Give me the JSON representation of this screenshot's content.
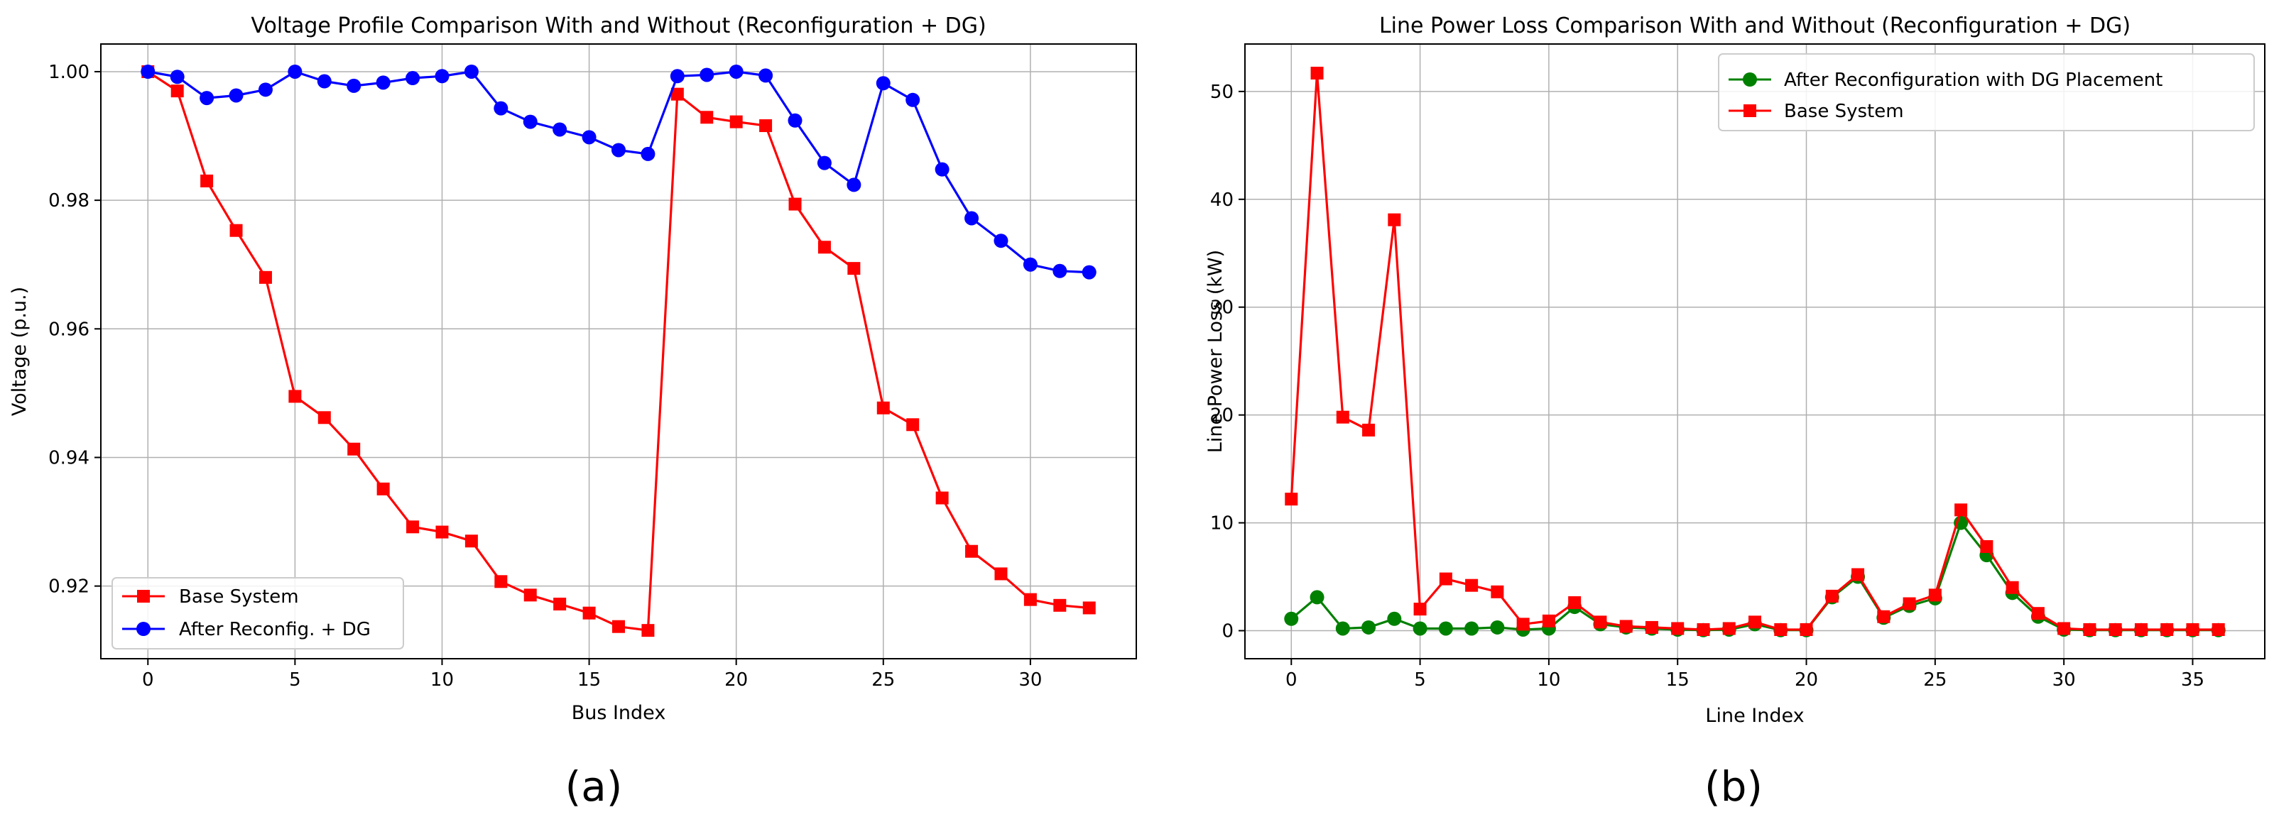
{
  "chart_data": [
    {
      "type": "line",
      "title": "Voltage Profile Comparison With and Without (Reconfiguration + DG)",
      "xlabel": "Bus Index",
      "ylabel": "Voltage (p.u.)",
      "xlim": [
        -1.6,
        33.6
      ],
      "ylim": [
        0.9087,
        1.0043
      ],
      "xticks": [
        0,
        5,
        10,
        15,
        20,
        25,
        30
      ],
      "yticks": [
        0.92,
        0.94,
        0.96,
        0.98,
        1.0
      ],
      "ytick_labels": [
        "0.92",
        "0.94",
        "0.96",
        "0.98",
        "1.00"
      ],
      "grid": true,
      "legend_position": "lower-left",
      "caption": "(a)",
      "series": [
        {
          "name": "Base System",
          "color": "#ff0000",
          "marker": "square",
          "x": [
            0,
            1,
            2,
            3,
            4,
            5,
            6,
            7,
            8,
            9,
            10,
            11,
            12,
            13,
            14,
            15,
            16,
            17,
            18,
            19,
            20,
            21,
            22,
            23,
            24,
            25,
            26,
            27,
            28,
            29,
            30,
            31,
            32
          ],
          "values": [
            1.0,
            0.997,
            0.983,
            0.9753,
            0.968,
            0.9495,
            0.9462,
            0.9413,
            0.9351,
            0.9292,
            0.9284,
            0.927,
            0.9207,
            0.9186,
            0.9172,
            0.9158,
            0.9137,
            0.9131,
            0.9965,
            0.9929,
            0.9922,
            0.9916,
            0.9794,
            0.9727,
            0.9694,
            0.9477,
            0.9451,
            0.9337,
            0.9254,
            0.9219,
            0.9179,
            0.917,
            0.9166
          ]
        },
        {
          "name": "After Reconfig. + DG",
          "color": "#0000ff",
          "marker": "circle",
          "x": [
            0,
            1,
            2,
            3,
            4,
            5,
            6,
            7,
            8,
            9,
            10,
            11,
            12,
            13,
            14,
            15,
            16,
            17,
            18,
            19,
            20,
            21,
            22,
            23,
            24,
            25,
            26,
            27,
            28,
            29,
            30,
            31,
            32
          ],
          "values": [
            1.0,
            0.9992,
            0.9959,
            0.9963,
            0.9972,
            1.0,
            0.9985,
            0.9978,
            0.9983,
            0.999,
            0.9993,
            1.0,
            0.9943,
            0.9922,
            0.991,
            0.9898,
            0.9878,
            0.9872,
            0.9993,
            0.9995,
            1.0,
            0.9994,
            0.9924,
            0.9858,
            0.9824,
            0.9982,
            0.9956,
            0.9848,
            0.9772,
            0.9737,
            0.97,
            0.969,
            0.9688
          ]
        }
      ]
    },
    {
      "type": "line",
      "title": "Line Power Loss Comparison With and Without (Reconfiguration + DG)",
      "xlabel": "Line Index",
      "ylabel": "Line Power Loss (kW)",
      "xlim": [
        -1.8,
        37.8
      ],
      "ylim": [
        -2.6,
        54.4
      ],
      "xticks": [
        0,
        5,
        10,
        15,
        20,
        25,
        30,
        35
      ],
      "yticks": [
        0,
        10,
        20,
        30,
        40,
        50
      ],
      "ytick_labels": [
        "0",
        "10",
        "20",
        "30",
        "40",
        "50"
      ],
      "grid": true,
      "legend_position": "upper-right",
      "caption": "(b)",
      "series": [
        {
          "name": "After Reconfiguration with DG Placement",
          "color": "#008000",
          "marker": "circle",
          "x": [
            0,
            1,
            2,
            3,
            4,
            5,
            6,
            7,
            8,
            9,
            10,
            11,
            12,
            13,
            14,
            15,
            16,
            17,
            18,
            19,
            20,
            21,
            22,
            23,
            24,
            25,
            26,
            27,
            28,
            29,
            30,
            31,
            32,
            33,
            34,
            35,
            36
          ],
          "values": [
            1.1,
            3.1,
            0.2,
            0.3,
            1.1,
            0.2,
            0.2,
            0.2,
            0.3,
            0.1,
            0.2,
            2.2,
            0.6,
            0.3,
            0.2,
            0.1,
            0.05,
            0.1,
            0.6,
            0.05,
            0.05,
            3.1,
            5.0,
            1.2,
            2.3,
            3.0,
            10.0,
            7.0,
            3.5,
            1.3,
            0.1,
            0.05,
            0.05,
            0.05,
            0.05,
            0.05,
            0.05
          ]
        },
        {
          "name": "Base System",
          "color": "#ff0000",
          "marker": "square",
          "x": [
            0,
            1,
            2,
            3,
            4,
            5,
            6,
            7,
            8,
            9,
            10,
            11,
            12,
            13,
            14,
            15,
            16,
            17,
            18,
            19,
            20,
            21,
            22,
            23,
            24,
            25,
            26,
            27,
            28,
            29,
            30,
            31,
            32,
            33,
            34,
            35,
            36
          ],
          "values": [
            12.2,
            51.7,
            19.8,
            18.6,
            38.1,
            2.0,
            4.8,
            4.2,
            3.6,
            0.6,
            0.9,
            2.6,
            0.8,
            0.4,
            0.3,
            0.2,
            0.1,
            0.2,
            0.8,
            0.1,
            0.1,
            3.2,
            5.2,
            1.3,
            2.5,
            3.3,
            11.2,
            7.8,
            4.0,
            1.6,
            0.2,
            0.1,
            0.1,
            0.1,
            0.1,
            0.1,
            0.1
          ]
        }
      ]
    }
  ]
}
